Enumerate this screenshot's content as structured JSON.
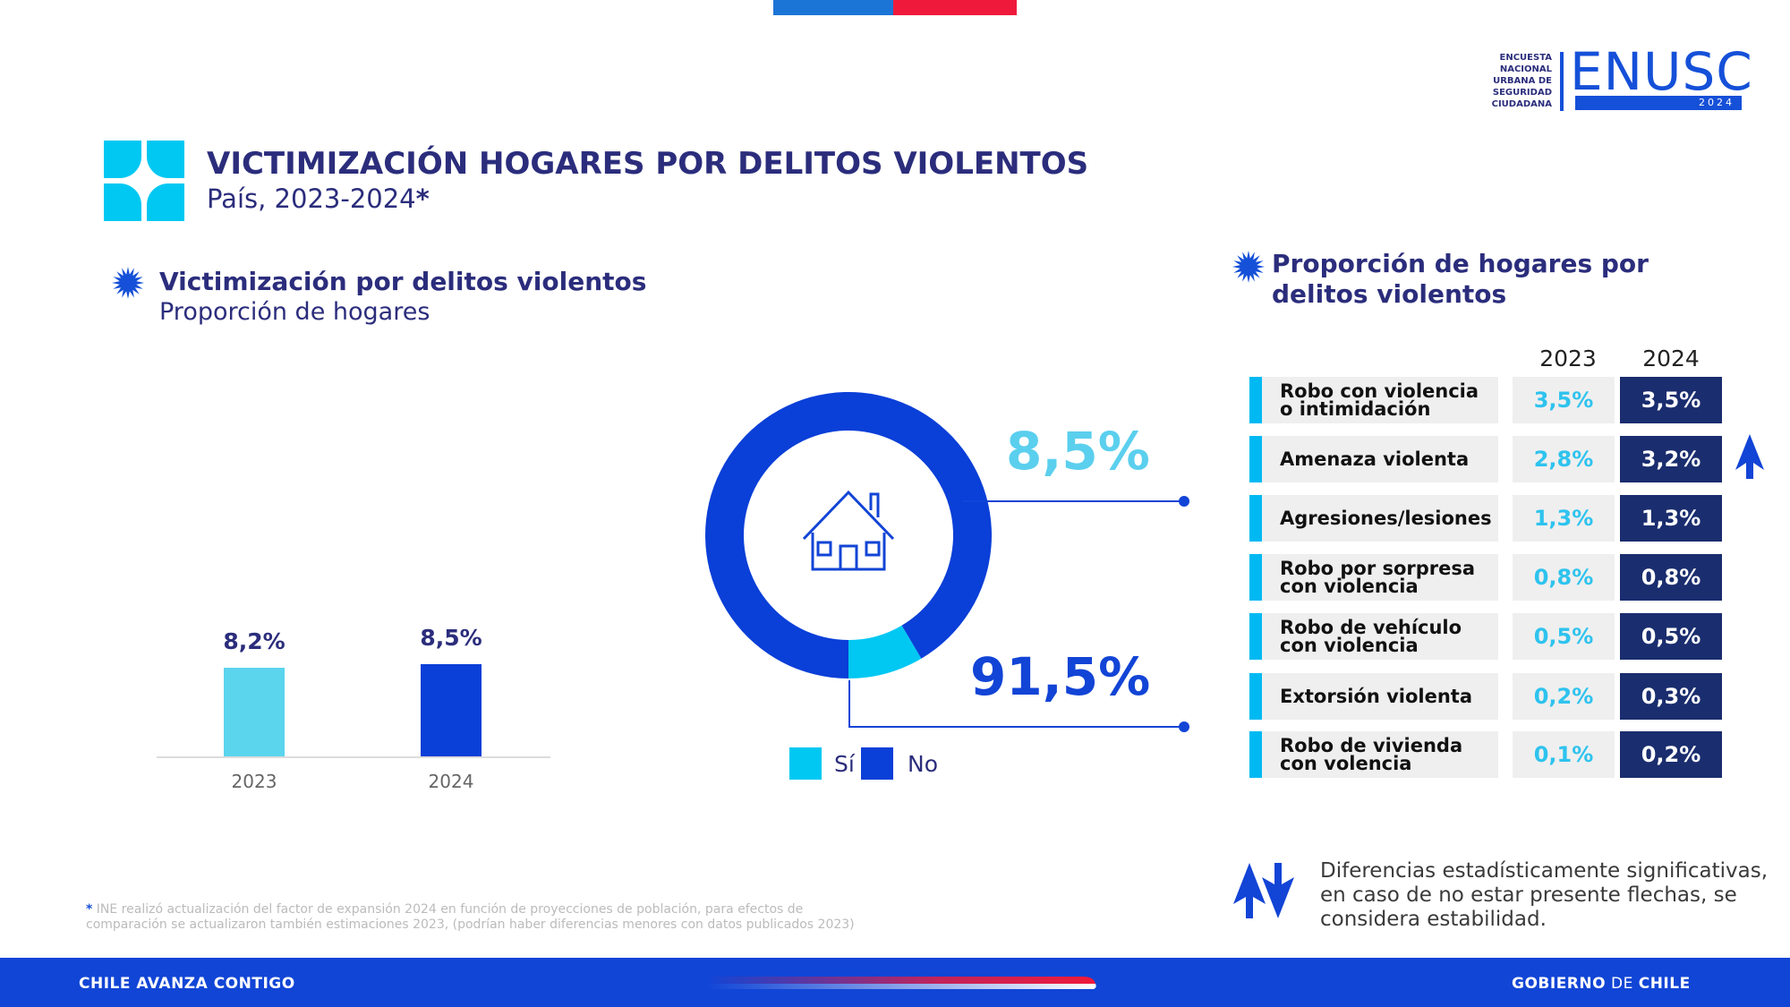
{
  "header": {
    "logo_small_lines": [
      "ENCUESTA",
      "NACIONAL",
      "URBANA DE",
      "SEGURIDAD",
      "CIUDADANA"
    ],
    "logo_big": "ENUSC",
    "logo_year": "2024",
    "title": "VICTIMIZACIÓN HOGARES POR DELITOS VIOLENTOS",
    "subtitle": "País, 2023-2024",
    "subtitle_mark": "*"
  },
  "left_section": {
    "title": "Victimización por delitos violentos",
    "subtitle": "Proporción de hogares"
  },
  "right_section": {
    "title_line1": "Proporción de hogares por",
    "title_line2": "delitos violentos"
  },
  "colors": {
    "dark_blue": "#2b2d7c",
    "blue": "#1244d6",
    "light_blue": "#5bd4ee",
    "cyan": "#00c8f2",
    "navy": "#1a2d6e"
  },
  "chart_data": [
    {
      "type": "bar",
      "categories": [
        "2023",
        "2024"
      ],
      "values": [
        8.2,
        8.5
      ],
      "data_labels": [
        "8,2%",
        "8,5%"
      ],
      "bar_colors": [
        "#5bd4ee",
        "#0a3fd8"
      ]
    },
    {
      "type": "pie",
      "variant": "donut",
      "labels": [
        "Sí",
        "No"
      ],
      "values": [
        8.5,
        91.5
      ],
      "data_labels": [
        "8,5%",
        "91,5%"
      ],
      "colors": [
        "#00c8f2",
        "#0a3fd8"
      ],
      "legend_position": "bottom",
      "center_icon": "house-icon"
    },
    {
      "type": "table",
      "columns": [
        "2023",
        "2024"
      ],
      "rows": [
        {
          "label_lines": [
            "Robo con violencia",
            "o intimidación"
          ],
          "v2023": "3,5%",
          "v2024": "3,5%",
          "arrow": ""
        },
        {
          "label_lines": [
            "Amenaza violenta"
          ],
          "v2023": "2,8%",
          "v2024": "3,2%",
          "arrow": "up"
        },
        {
          "label_lines": [
            "Agresiones/lesiones"
          ],
          "v2023": "1,3%",
          "v2024": "1,3%",
          "arrow": ""
        },
        {
          "label_lines": [
            "Robo por sorpresa",
            "con violencia"
          ],
          "v2023": "0,8%",
          "v2024": "0,8%",
          "arrow": ""
        },
        {
          "label_lines": [
            "Robo de vehículo",
            "con violencia"
          ],
          "v2023": "0,5%",
          "v2024": "0,5%",
          "arrow": ""
        },
        {
          "label_lines": [
            "Extorsión violenta"
          ],
          "v2023": "0,2%",
          "v2024": "0,3%",
          "arrow": ""
        },
        {
          "label_lines": [
            "Robo de vivienda",
            "con volencia"
          ],
          "v2023": "0,1%",
          "v2024": "0,2%",
          "arrow": ""
        }
      ]
    }
  ],
  "note": {
    "line1": "Diferencias estadísticamente significativas,",
    "line2": "en caso de no estar presente flechas, se",
    "line3": "considera estabilidad."
  },
  "footnote": {
    "mark": "*",
    "line1": " INE realizó actualización del factor de expansión 2024 en función de proyecciones de población, para efectos de",
    "line2": "comparación se actualizaron también estimaciones 2023, (podrían haber diferencias menores con datos publicados 2023)"
  },
  "footer": {
    "left_a": "CHILE ",
    "left_b": "AVANZA",
    "left_c": " CONTIGO",
    "right_a": "GOBIERNO",
    "right_b": " DE ",
    "right_c": "CHILE"
  }
}
